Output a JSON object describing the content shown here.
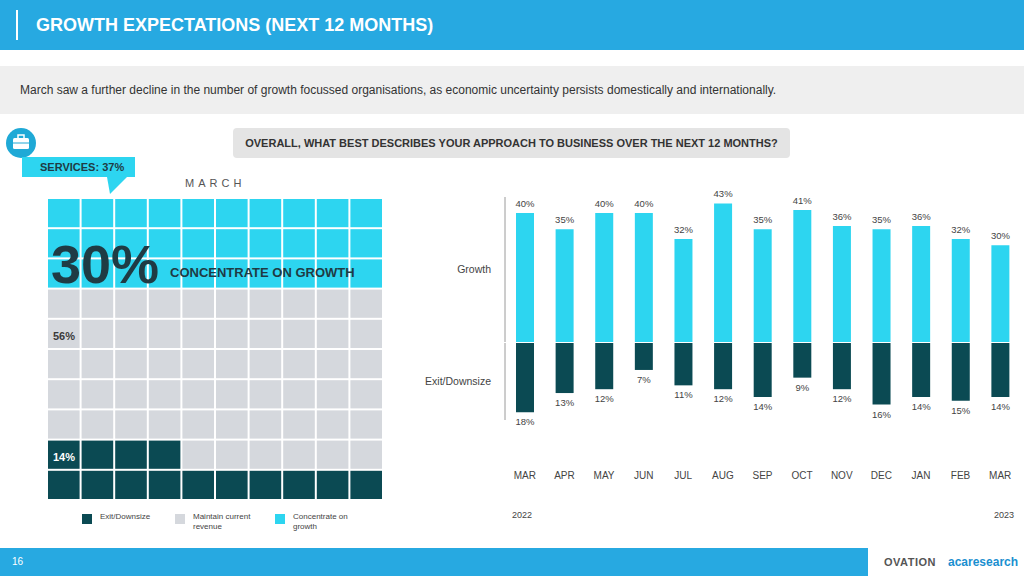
{
  "header": {
    "title": "GROWTH EXPECTATIONS (NEXT 12 MONTHS)",
    "subtitle": "March saw a further decline in the number of growth focussed organisations, as economic uncertainty persists domestically and internationally.",
    "question": "OVERALL, WHAT BEST DESCRIBES YOUR APPROACH TO BUSINESS OVER THE NEXT 12 MONTHS?"
  },
  "footer": {
    "page": "16",
    "logos": [
      "OVATION",
      "acaresearch"
    ]
  },
  "chart_data": [
    {
      "type": "waffle",
      "title": "MARCH",
      "annotations": [
        "SERVICES: 37%",
        "CONCENTRATE ON GROWTH"
      ],
      "categories": [
        "Exit/Downsize",
        "Maintain current revenue",
        "Concentrate on growth"
      ],
      "values": [
        14,
        56,
        30
      ],
      "value_labels": [
        "14%",
        "56%",
        "30%"
      ],
      "colors": [
        "#0b4a53",
        "#d5d8dd",
        "#2dd5f0"
      ],
      "legend": "bottom",
      "data_labels": true
    },
    {
      "type": "bar",
      "ylabel": "Growth",
      "categories": [
        "MAR",
        "APR",
        "MAY",
        "JUN",
        "JUL",
        "AUG",
        "SEP",
        "OCT",
        "NOV",
        "DEC",
        "JAN",
        "FEB",
        "MAR"
      ],
      "series": [
        {
          "name": "Growth",
          "color": "#2dd5f0",
          "values": [
            40,
            35,
            40,
            40,
            32,
            43,
            35,
            41,
            36,
            35,
            36,
            32,
            30
          ],
          "value_labels": [
            "40%",
            "35%",
            "40%",
            "40%",
            "32%",
            "43%",
            "35%",
            "41%",
            "36%",
            "35%",
            "36%",
            "32%",
            "30%"
          ]
        }
      ],
      "ylim": [
        0,
        45
      ],
      "data_labels": true,
      "tick_labels": false
    },
    {
      "type": "bar",
      "ylabel": "Exit/Downsize",
      "categories": [
        "MAR",
        "APR",
        "MAY",
        "JUN",
        "JUL",
        "AUG",
        "SEP",
        "OCT",
        "NOV",
        "DEC",
        "JAN",
        "FEB",
        "MAR"
      ],
      "series": [
        {
          "name": "Exit/Downsize",
          "color": "#0b4a53",
          "values": [
            18,
            13,
            12,
            7,
            11,
            12,
            14,
            9,
            12,
            16,
            14,
            15,
            14
          ],
          "value_labels": [
            "18%",
            "13%",
            "12%",
            "7%",
            "11%",
            "12%",
            "14%",
            "9%",
            "12%",
            "16%",
            "14%",
            "15%",
            "14%"
          ]
        }
      ],
      "ylim": [
        20,
        0
      ],
      "data_labels": true,
      "tick_labels": "x",
      "annotations": [
        "2022",
        "2023"
      ]
    }
  ]
}
